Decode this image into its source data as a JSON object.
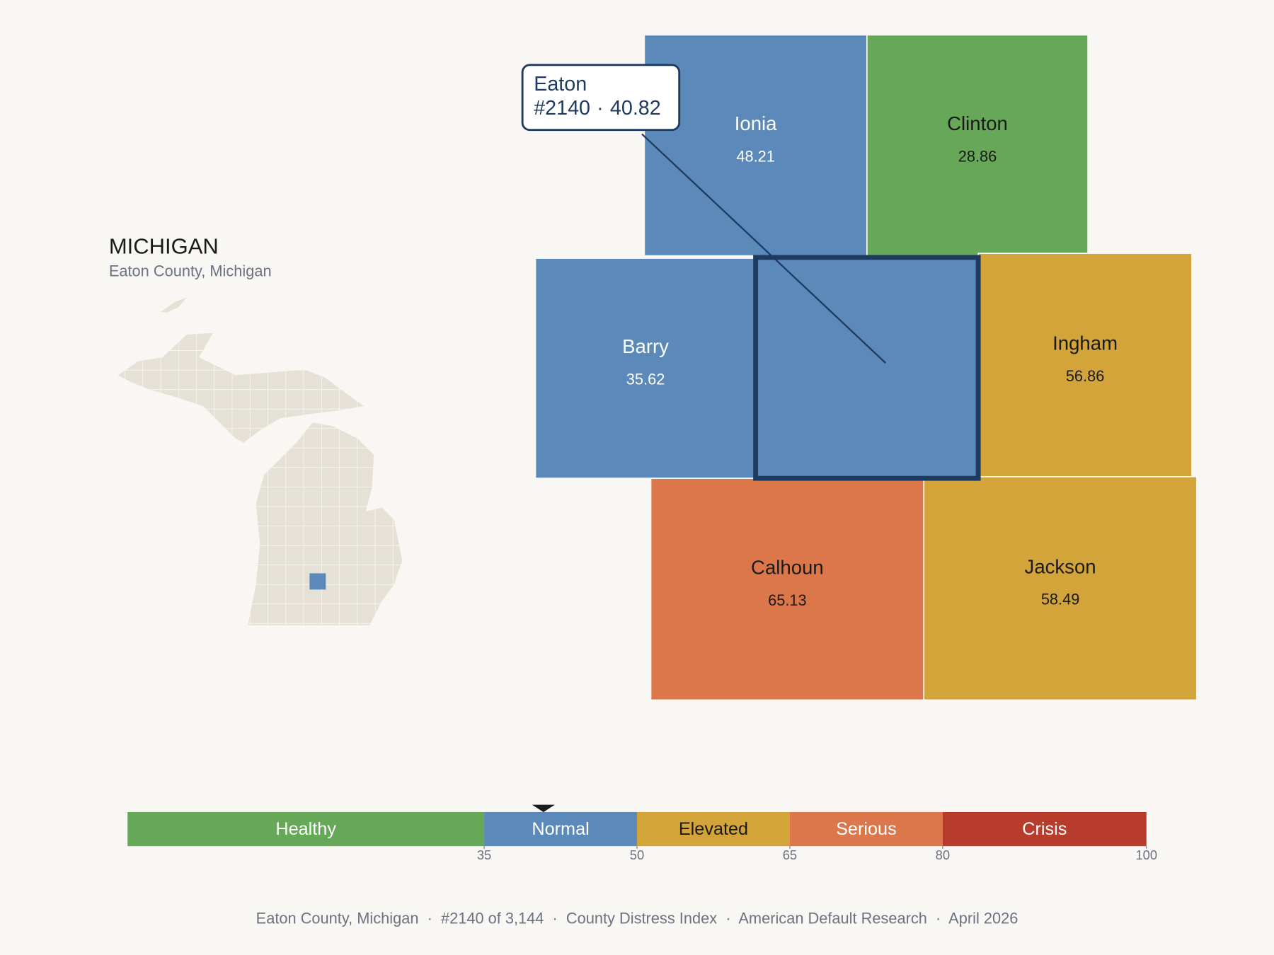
{
  "state": {
    "title": "MICHIGAN",
    "subtitle": "Eaton County, Michigan"
  },
  "tooltip": {
    "rank": "#2140",
    "separator": "·"
  },
  "focus_index": 2,
  "counties": [
    {
      "name": "Ionia",
      "value": 48.21,
      "color": "#5b8aba",
      "label_color": "#ffffff"
    },
    {
      "name": "Clinton",
      "value": 28.86,
      "color": "#67a758",
      "label_color": "#1a1a1a"
    },
    {
      "name": "Eaton",
      "value": 40.82,
      "color": "#5b8aba",
      "label_color": "#ffffff"
    },
    {
      "name": "Barry",
      "value": 35.62,
      "color": "#5b8aba",
      "label_color": "#ffffff"
    },
    {
      "name": "Ingham",
      "value": 56.86,
      "color": "#d3a43a",
      "label_color": "#1a1a1a"
    },
    {
      "name": "Calhoun",
      "value": 65.13,
      "color": "#db774b",
      "label_color": "#1a1a1a"
    },
    {
      "name": "Jackson",
      "value": 58.49,
      "color": "#d3a43a",
      "label_color": "#1a1a1a"
    }
  ],
  "legend": {
    "lim": [
      0,
      100
    ],
    "ticks": [
      35,
      50,
      65,
      80,
      100
    ],
    "bands": [
      {
        "label": "Healthy",
        "color": "#67a758",
        "label_color": "#ffffff"
      },
      {
        "label": "Normal",
        "color": "#5b8aba",
        "label_color": "#ffffff"
      },
      {
        "label": "Elevated",
        "color": "#d3a43a",
        "label_color": "#1a1a1a"
      },
      {
        "label": "Serious",
        "color": "#db774b",
        "label_color": "#ffffff"
      },
      {
        "label": "Crisis",
        "color": "#b83c2c",
        "label_color": "#ffffff"
      }
    ]
  },
  "footer": "Eaton County, Michigan  ·  #2140 of 3,144  ·  County Distress Index  ·  American Default Research  ·  April 2026"
}
